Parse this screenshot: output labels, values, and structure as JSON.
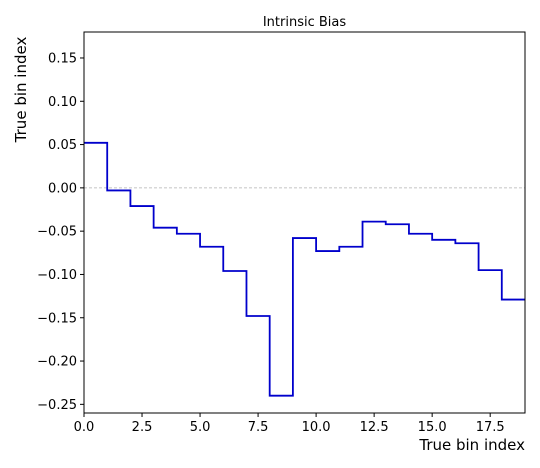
{
  "chart_data": {
    "type": "line",
    "drawstyle": "steps-post",
    "title": "Intrinsic Bias",
    "xlabel": "True bin index",
    "ylabel": "True bin index",
    "xlim": [
      0,
      19
    ],
    "ylim": [
      -0.26,
      0.18
    ],
    "xticks": [
      0,
      2.5,
      5,
      7.5,
      10,
      12.5,
      15,
      17.5
    ],
    "xtick_labels": [
      "0.0",
      "2.5",
      "5.0",
      "7.5",
      "10.0",
      "12.5",
      "15.0",
      "17.5"
    ],
    "yticks": [
      -0.25,
      -0.2,
      -0.15,
      -0.1,
      -0.05,
      0.0,
      0.05,
      0.1,
      0.15
    ],
    "ytick_labels": [
      "−0.25",
      "−0.20",
      "−0.15",
      "−0.10",
      "−0.05",
      "0.00",
      "0.05",
      "0.10",
      "0.15"
    ],
    "grid": false,
    "reference_line": {
      "y": 0.0,
      "style": "dashed",
      "color": "#b0b0b0"
    },
    "series": [
      {
        "color": "#0000cc",
        "x": [
          0,
          1,
          2,
          3,
          4,
          5,
          6,
          7,
          8,
          9,
          10,
          11,
          12,
          13,
          14,
          15,
          16,
          17,
          18
        ],
        "values": [
          0.052,
          -0.003,
          -0.021,
          -0.046,
          -0.053,
          -0.068,
          -0.096,
          -0.148,
          -0.24,
          -0.058,
          -0.073,
          -0.068,
          -0.039,
          -0.042,
          -0.053,
          -0.06,
          -0.064,
          -0.095,
          -0.129
        ]
      }
    ]
  }
}
